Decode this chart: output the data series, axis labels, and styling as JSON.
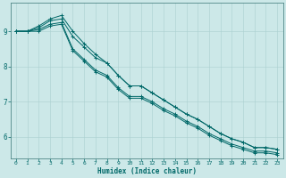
{
  "xlabel": "Humidex (Indice chaleur)",
  "xlim": [
    -0.5,
    23.5
  ],
  "ylim": [
    5.4,
    9.8
  ],
  "xticks": [
    0,
    1,
    2,
    3,
    4,
    5,
    6,
    7,
    8,
    9,
    10,
    11,
    12,
    13,
    14,
    15,
    16,
    17,
    18,
    19,
    20,
    21,
    22,
    23
  ],
  "yticks": [
    6,
    7,
    8,
    9
  ],
  "bg_color": "#cce8e8",
  "grid_color": "#aad0d0",
  "line_color": "#006868",
  "lines": [
    [
      9.0,
      9.0,
      9.1,
      9.3,
      9.35,
      8.85,
      8.55,
      8.25,
      8.1,
      7.75,
      7.45,
      7.45,
      7.25,
      7.05,
      6.85,
      6.65,
      6.5,
      6.3,
      6.1,
      5.95,
      5.85,
      5.7,
      5.7,
      5.65
    ],
    [
      9.0,
      9.0,
      9.15,
      9.35,
      9.45,
      9.0,
      8.65,
      8.35,
      8.1,
      7.75,
      7.45,
      7.45,
      7.25,
      7.05,
      6.85,
      6.65,
      6.5,
      6.3,
      6.1,
      5.95,
      5.85,
      5.7,
      5.7,
      5.65
    ],
    [
      9.0,
      9.0,
      9.05,
      9.2,
      9.25,
      8.5,
      8.2,
      7.9,
      7.75,
      7.4,
      7.15,
      7.15,
      7.0,
      6.8,
      6.65,
      6.45,
      6.3,
      6.1,
      5.95,
      5.8,
      5.7,
      5.6,
      5.6,
      5.55
    ],
    [
      9.0,
      9.0,
      9.0,
      9.15,
      9.2,
      8.45,
      8.15,
      7.85,
      7.7,
      7.35,
      7.1,
      7.1,
      6.95,
      6.75,
      6.6,
      6.4,
      6.25,
      6.05,
      5.9,
      5.75,
      5.65,
      5.55,
      5.55,
      5.5
    ]
  ]
}
